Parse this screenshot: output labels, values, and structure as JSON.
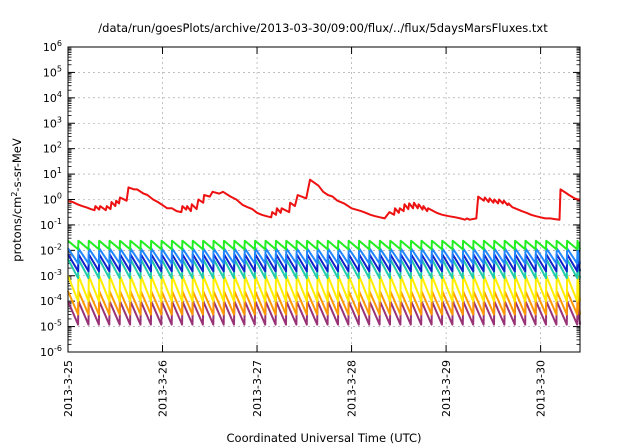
{
  "chart_data": {
    "type": "line",
    "title": "/data/run/goesPlots/archive/2013-03-30/09:00/flux/../flux/5daysMarsFluxes.txt",
    "xlabel": "Coordinated Universal Time (UTC)",
    "ylabel": {
      "base": "protons/cm",
      "sup": "2",
      "rest": "-s-sr-MeV"
    },
    "yscale": "log",
    "ylim": [
      1e-06,
      1000000.0
    ],
    "xlim": [
      "2013-03-25 00:00",
      "2013-03-30 10:00"
    ],
    "x_ticks": [
      "2013-3-25",
      "2013-3-26",
      "2013-3-27",
      "2013-3-28",
      "2013-3-29",
      "2013-3-30"
    ],
    "y_ticks": [
      {
        "base": "10",
        "exp": "-6"
      },
      {
        "base": "10",
        "exp": "-5"
      },
      {
        "base": "10",
        "exp": "-4"
      },
      {
        "base": "10",
        "exp": "-3"
      },
      {
        "base": "10",
        "exp": "-2"
      },
      {
        "base": "10",
        "exp": "-1"
      },
      {
        "base": "10",
        "exp": "0"
      },
      {
        "base": "10",
        "exp": "1"
      },
      {
        "base": "10",
        "exp": "2"
      },
      {
        "base": "10",
        "exp": "3"
      },
      {
        "base": "10",
        "exp": "4"
      },
      {
        "base": "10",
        "exp": "5"
      },
      {
        "base": "10",
        "exp": "6"
      }
    ],
    "grid": true,
    "legend": "none",
    "series": [
      {
        "color": "#ee1111",
        "x": [
          0,
          0.05,
          0.1,
          0.15,
          0.2,
          0.24,
          0.28,
          0.29,
          0.33,
          0.34,
          0.4,
          0.41,
          0.45,
          0.46,
          0.5,
          0.51,
          0.54,
          0.55,
          0.62,
          0.64,
          0.7,
          0.73,
          0.8,
          0.84,
          0.9,
          0.95,
          1.0,
          1.05,
          1.1,
          1.15,
          1.2,
          1.21,
          1.25,
          1.26,
          1.3,
          1.31,
          1.36,
          1.38,
          1.43,
          1.44,
          1.5,
          1.53,
          1.6,
          1.64,
          1.72,
          1.78,
          1.85,
          1.9,
          1.95,
          2.0,
          2.05,
          2.1,
          2.15,
          2.16,
          2.2,
          2.21,
          2.25,
          2.26,
          2.34,
          2.35,
          2.4,
          2.43,
          2.52,
          2.56,
          2.65,
          2.7,
          2.75,
          2.8,
          2.85,
          2.92,
          3.0,
          3.1,
          3.15,
          3.2,
          3.25,
          3.3,
          3.35,
          3.4,
          3.45,
          3.46,
          3.5,
          3.51,
          3.55,
          3.56,
          3.6,
          3.61,
          3.65,
          3.66,
          3.7,
          3.71,
          3.75,
          3.76,
          3.8,
          3.81,
          3.9,
          3.96,
          4.03,
          4.1,
          4.15,
          4.2,
          4.22,
          4.25,
          4.32,
          4.34,
          4.4,
          4.41,
          4.45,
          4.46,
          4.5,
          4.51,
          4.55,
          4.56,
          4.6,
          4.61,
          4.65,
          4.66,
          4.7,
          4.73,
          4.8,
          4.85,
          4.9,
          4.95,
          5.0,
          5.05,
          5.1,
          5.15,
          5.2,
          5.21,
          5.27,
          5.3,
          5.36,
          5.4,
          5.42
        ],
        "y": [
          0.85,
          0.8,
          0.65,
          0.55,
          0.48,
          0.42,
          0.38,
          0.55,
          0.4,
          0.55,
          0.38,
          0.55,
          0.42,
          0.8,
          0.55,
          0.9,
          0.7,
          1.2,
          0.9,
          3.0,
          2.5,
          2.5,
          1.7,
          1.5,
          1.0,
          0.8,
          0.6,
          0.45,
          0.45,
          0.35,
          0.32,
          0.55,
          0.4,
          0.55,
          0.35,
          0.65,
          0.42,
          1.0,
          0.75,
          1.5,
          1.3,
          2.0,
          1.7,
          2.0,
          1.3,
          1.0,
          0.6,
          0.5,
          0.42,
          0.3,
          0.25,
          0.22,
          0.2,
          0.32,
          0.25,
          0.45,
          0.3,
          0.45,
          0.32,
          0.75,
          0.55,
          1.5,
          1.1,
          6.0,
          3.5,
          2.0,
          1.5,
          1.3,
          0.9,
          0.7,
          0.45,
          0.35,
          0.3,
          0.25,
          0.22,
          0.2,
          0.18,
          0.32,
          0.25,
          0.45,
          0.3,
          0.45,
          0.35,
          0.65,
          0.42,
          0.7,
          0.45,
          0.75,
          0.45,
          0.65,
          0.4,
          0.55,
          0.35,
          0.45,
          0.3,
          0.25,
          0.22,
          0.2,
          0.18,
          0.16,
          0.18,
          0.16,
          0.18,
          1.3,
          0.9,
          1.2,
          0.8,
          1.1,
          0.75,
          1.0,
          0.7,
          1.0,
          0.7,
          0.9,
          0.6,
          0.7,
          0.5,
          0.45,
          0.35,
          0.3,
          0.25,
          0.22,
          0.2,
          0.18,
          0.18,
          0.17,
          0.16,
          2.5,
          1.8,
          1.5,
          1.1,
          1.0,
          1.0
        ]
      },
      {
        "color": "#22ee22",
        "sawtooth": {
          "period": 0.11,
          "low": 0.011,
          "high": 0.024
        }
      },
      {
        "color": "#2288ff",
        "sawtooth": {
          "period": 0.11,
          "low": 0.003,
          "high": 0.012
        }
      },
      {
        "color": "#1122cc",
        "sawtooth": {
          "period": 0.11,
          "low": 0.0015,
          "high": 0.007
        }
      },
      {
        "color": "#22ccaa",
        "sawtooth": {
          "period": 0.11,
          "low": 0.0008,
          "high": 0.0045
        }
      },
      {
        "color": "#ffee00",
        "sawtooth": {
          "period": 0.11,
          "low": 0.0001,
          "high": 0.001
        }
      },
      {
        "color": "#ff9900",
        "sawtooth": {
          "period": 0.11,
          "low": 3e-05,
          "high": 0.00025
        }
      },
      {
        "color": "#993377",
        "sawtooth": {
          "period": 0.11,
          "low": 1.2e-05,
          "high": 0.0001
        }
      }
    ]
  }
}
